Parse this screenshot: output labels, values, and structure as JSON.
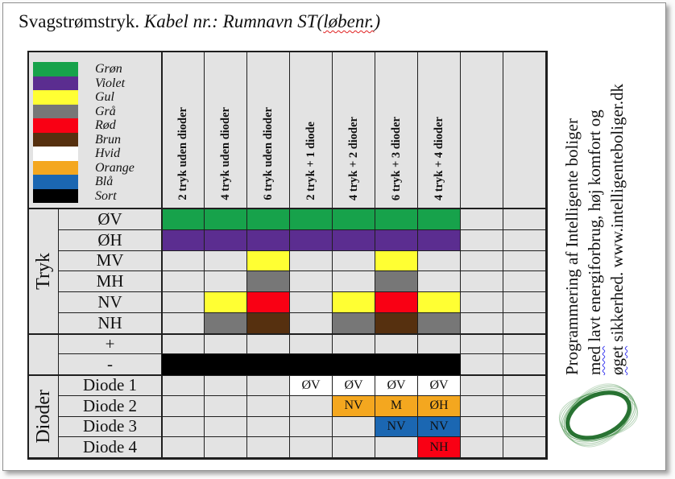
{
  "title": {
    "prefix": "Svagstrømstryk.",
    "italic": " Kabel nr.: Rumnavn ST(",
    "flagged": "løbenr.",
    "suffix": ")"
  },
  "palette": {
    "green": "#17A24B",
    "violet": "#5B2D90",
    "yellow": "#FFFF33",
    "gray": "#777777",
    "red": "#F90014",
    "brown": "#56300F",
    "white": "#FFFFFF",
    "orange": "#F4A71F",
    "blue": "#1B67B2",
    "black": "#000000",
    "cell_bg": "#E3E3E3",
    "grid_line": "#1F1F1F"
  },
  "legend": [
    {
      "label": "Grøn",
      "color": "green"
    },
    {
      "label": "Violet",
      "color": "violet"
    },
    {
      "label": "Gul",
      "color": "yellow"
    },
    {
      "label": "Grå",
      "color": "gray"
    },
    {
      "label": "Rød",
      "color": "red"
    },
    {
      "label": "Brun",
      "color": "brown"
    },
    {
      "label": "Hvid",
      "color": "white"
    },
    {
      "label": "Orange",
      "color": "orange"
    },
    {
      "label": "Blå",
      "color": "blue"
    },
    {
      "label": "Sort",
      "color": "black"
    }
  ],
  "columns": [
    "2 tryk uden dioder",
    "4 tryk uden dioder",
    "6 tryk uden dioder",
    "2 tryk + 1 diode",
    "4 tryk + 2 dioder",
    "6 tryk + 3 dioder",
    "4 tryk + 4 dioder",
    "",
    ""
  ],
  "groups": [
    {
      "label": "Tryk",
      "rows": [
        {
          "label": "ØV",
          "cells": {
            "1": {
              "bg": "green"
            },
            "2": {
              "bg": "green"
            },
            "3": {
              "bg": "green"
            },
            "4": {
              "bg": "green"
            },
            "5": {
              "bg": "green"
            },
            "6": {
              "bg": "green"
            },
            "7": {
              "bg": "green"
            }
          }
        },
        {
          "label": "ØH",
          "cells": {
            "1": {
              "bg": "violet"
            },
            "2": {
              "bg": "violet"
            },
            "3": {
              "bg": "violet"
            },
            "4": {
              "bg": "violet"
            },
            "5": {
              "bg": "violet"
            },
            "6": {
              "bg": "violet"
            },
            "7": {
              "bg": "violet"
            }
          }
        },
        {
          "label": "MV",
          "cells": {
            "3": {
              "bg": "yellow"
            },
            "6": {
              "bg": "yellow"
            }
          }
        },
        {
          "label": "MH",
          "cells": {
            "3": {
              "bg": "gray"
            },
            "6": {
              "bg": "gray"
            }
          }
        },
        {
          "label": "NV",
          "cells": {
            "2": {
              "bg": "yellow"
            },
            "3": {
              "bg": "red"
            },
            "5": {
              "bg": "yellow"
            },
            "6": {
              "bg": "red"
            },
            "7": {
              "bg": "yellow"
            }
          }
        },
        {
          "label": "NH",
          "cells": {
            "2": {
              "bg": "gray"
            },
            "3": {
              "bg": "brown"
            },
            "5": {
              "bg": "gray"
            },
            "6": {
              "bg": "brown"
            },
            "7": {
              "bg": "gray"
            }
          }
        }
      ]
    },
    {
      "label": "",
      "rows": [
        {
          "label": "+",
          "cells": {}
        },
        {
          "label": "-",
          "cells": {
            "1": {
              "bg": "black"
            },
            "2": {
              "bg": "black"
            },
            "3": {
              "bg": "black"
            },
            "4": {
              "bg": "black"
            },
            "5": {
              "bg": "black"
            },
            "6": {
              "bg": "black"
            },
            "7": {
              "bg": "black"
            }
          }
        }
      ]
    },
    {
      "label": "Dioder",
      "rows": [
        {
          "label": "Diode 1",
          "cells": {
            "4": {
              "bg": "white",
              "text": "ØV"
            },
            "5": {
              "bg": "white",
              "text": "ØV"
            },
            "6": {
              "bg": "white",
              "text": "ØV"
            },
            "7": {
              "bg": "white",
              "text": "ØV"
            }
          }
        },
        {
          "label": "Diode 2",
          "cells": {
            "5": {
              "bg": "orange",
              "text": "NV"
            },
            "6": {
              "bg": "orange",
              "text": "M"
            },
            "7": {
              "bg": "orange",
              "text": "ØH"
            }
          }
        },
        {
          "label": "Diode 3",
          "cells": {
            "6": {
              "bg": "blue",
              "text": "NV"
            },
            "7": {
              "bg": "blue",
              "text": "NV"
            }
          }
        },
        {
          "label": "Diode 4",
          "cells": {
            "7": {
              "bg": "red",
              "text": "NH"
            }
          }
        }
      ]
    }
  ],
  "sidebar": {
    "lines": [
      [
        {
          "text": "Programmering af Intelligente boliger",
          "flagged": false
        }
      ],
      [
        {
          "text": "med",
          "flagged": true
        },
        {
          "text": " lavt energiforbrug, høj komfort og",
          "flagged": false
        }
      ],
      [
        {
          "text": "øget",
          "flagged": true
        },
        {
          "text": " sikkerhed. www.intelligenteboliger.dk",
          "flagged": false
        }
      ]
    ],
    "logo": "green-ellipse-swirl-logo",
    "logo_color": "#1D6B28"
  }
}
